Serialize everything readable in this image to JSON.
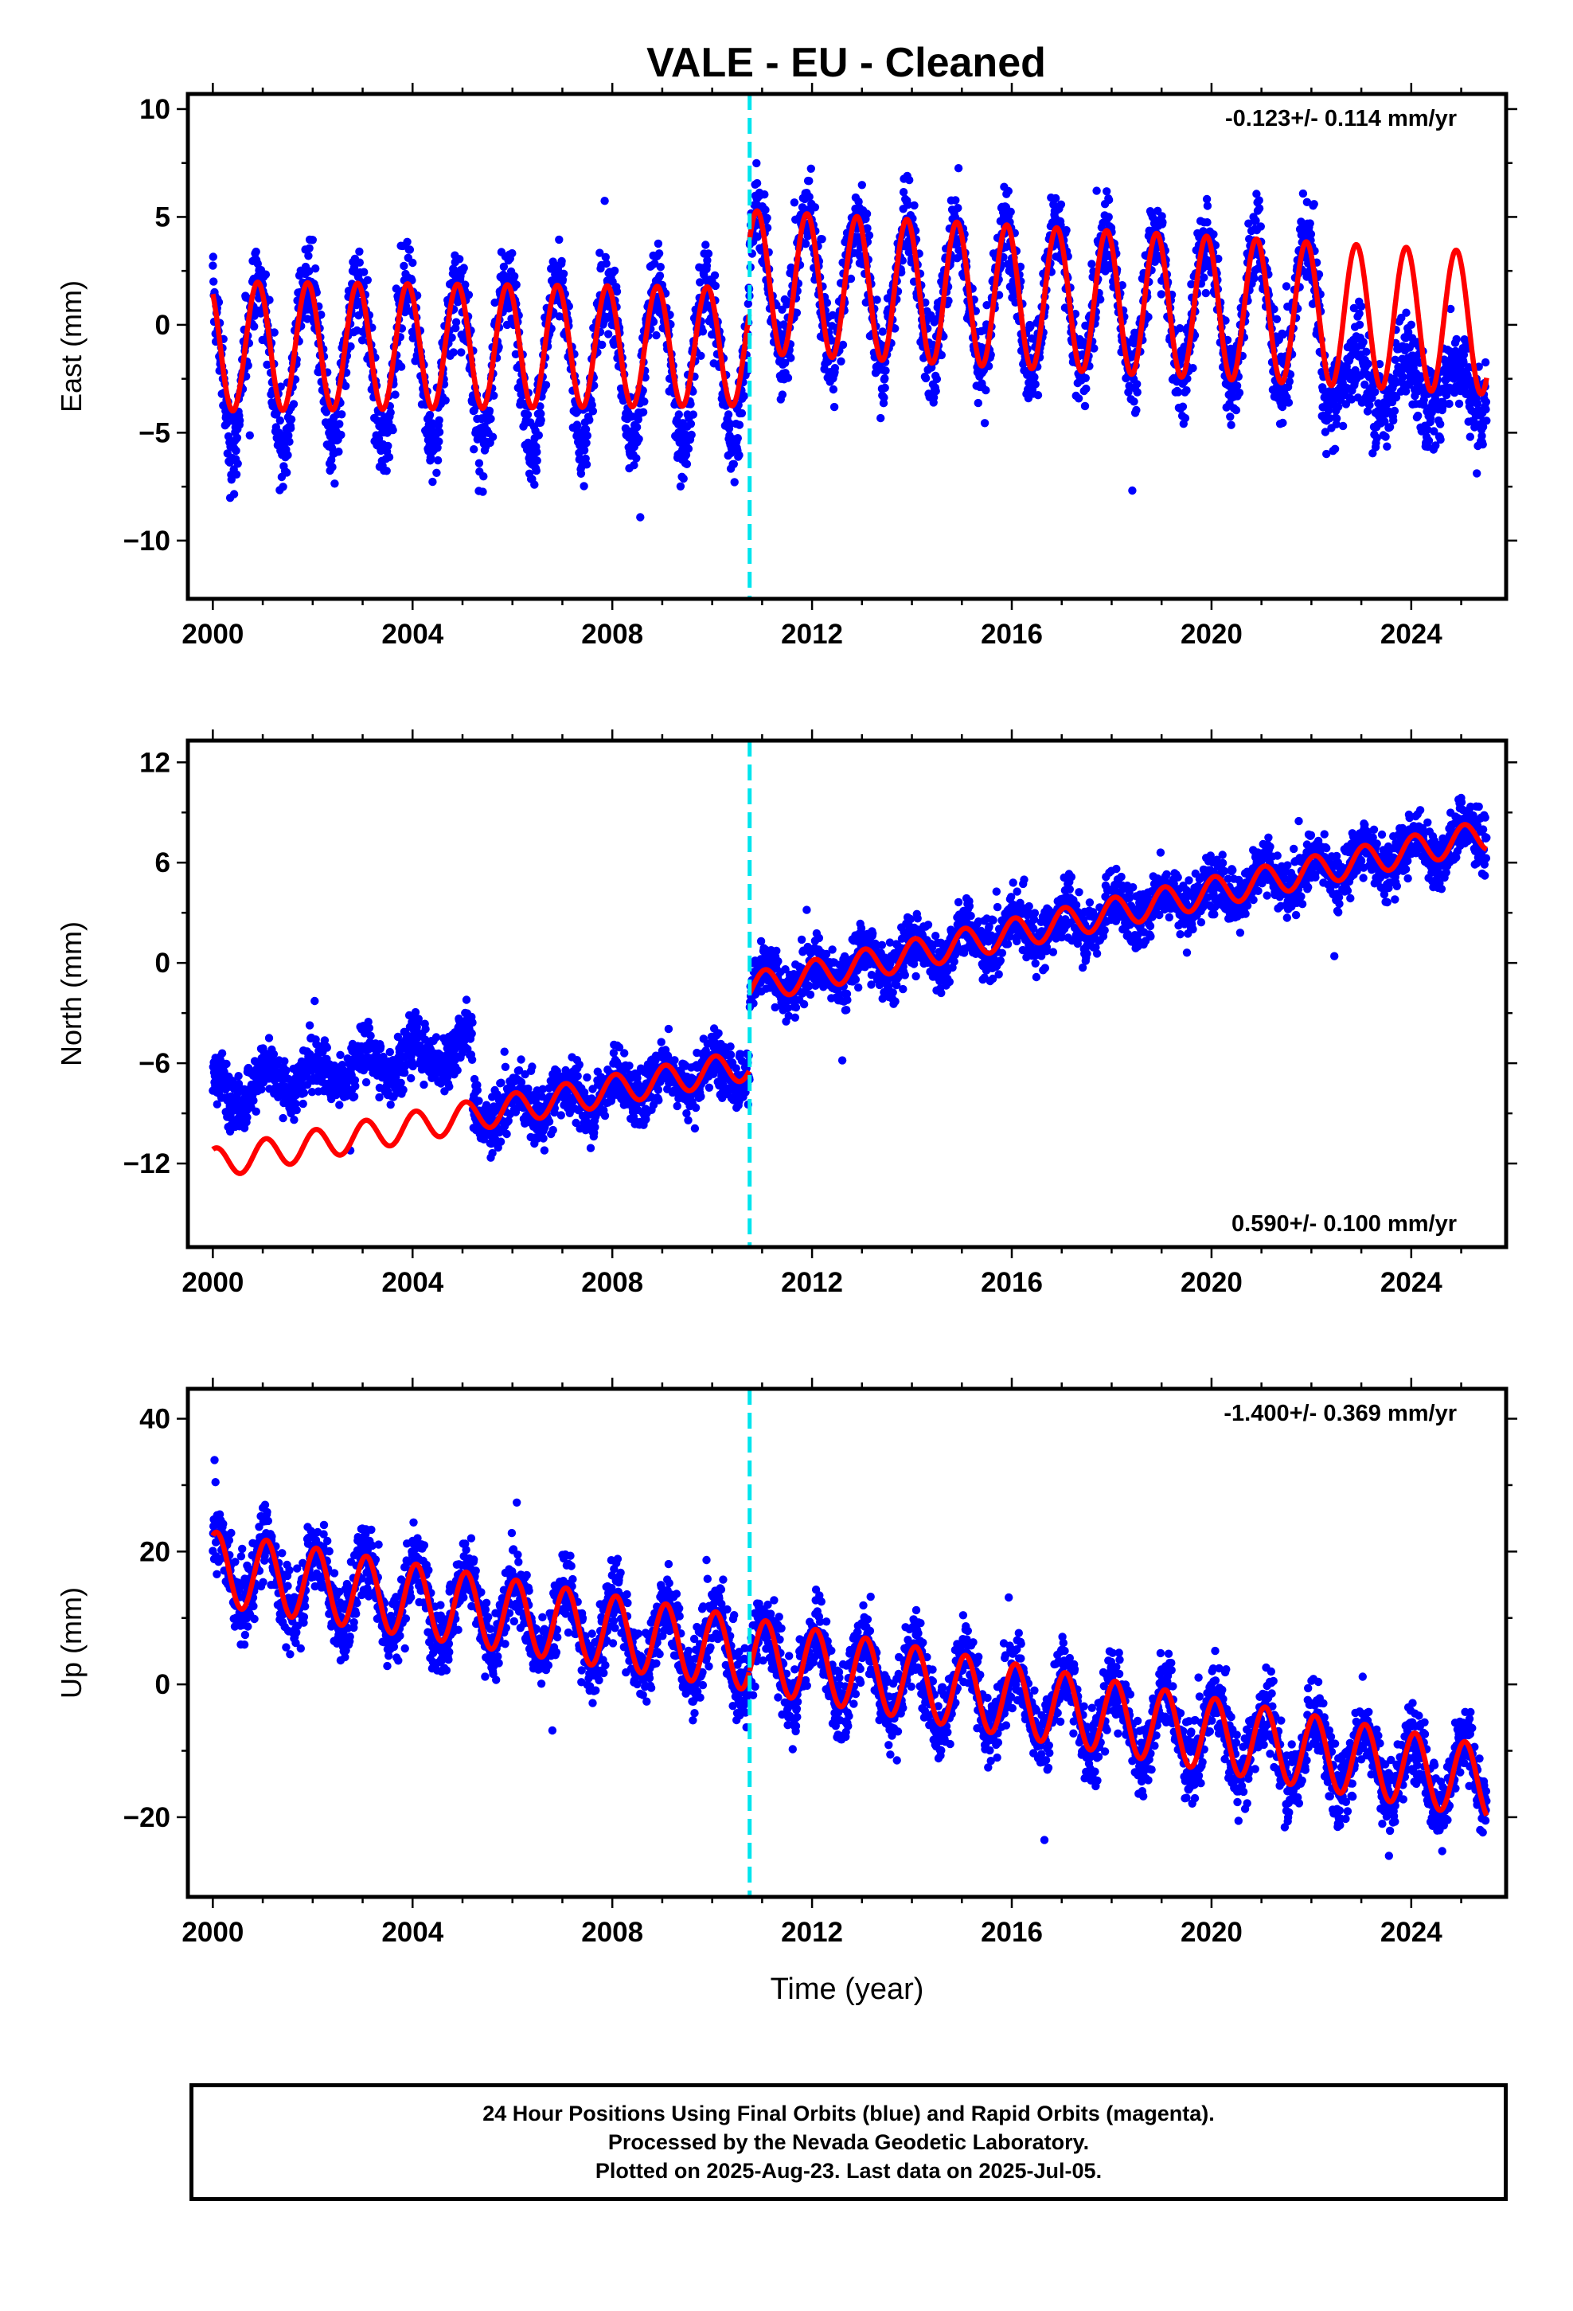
{
  "title": "VALE  - EU - Cleaned",
  "footer": {
    "line1": "24 Hour Positions Using Final Orbits (blue) and Rapid Orbits (magenta).",
    "line2": "Processed by the Nevada Geodetic Laboratory.",
    "line3": "Plotted on 2025-Aug-23. Last data on 2025-Jul-05."
  },
  "colors": {
    "final_orbits": "#0000ff",
    "model_fit": "#ff0000",
    "equipment_change": "#00e5ee",
    "frame": "#000000"
  },
  "chart_data": [
    {
      "type": "scatter",
      "ylabel": "East (mm)",
      "xlabel": "",
      "xlim": [
        1999.5,
        2025.9
      ],
      "ylim": [
        -12.7,
        10.7
      ],
      "xticks": [
        2000,
        2004,
        2008,
        2012,
        2016,
        2020,
        2024
      ],
      "yticks": [
        10,
        5,
        0,
        -5,
        -10
      ],
      "rate_text": "-0.123+/- 0.114 mm/yr",
      "rate_position": "top-right",
      "discontinuity": 2010.75,
      "data_start": 2000.0,
      "data_end": 2025.51,
      "model": {
        "pre": {
          "offset": -1.0,
          "trend": 0.0,
          "annual_amp": 3.0,
          "annual_amp_change": 0.6,
          "phase": 2.2
        },
        "post": {
          "offset": 2.0,
          "trend": -0.13,
          "annual_amp": 3.3,
          "annual_amp_change": 0.0,
          "phase": 2.2
        },
        "fit_start": 2000.0,
        "fit_end": 2025.51
      },
      "series": [
        {
          "name": "final orbits (blue)",
          "noise": 1.4,
          "extra": "east"
        },
        {
          "name": "model (red)"
        }
      ]
    },
    {
      "type": "scatter",
      "ylabel": "North (mm)",
      "xlabel": "",
      "xlim": [
        1999.5,
        2025.9
      ],
      "ylim": [
        -17,
        13.3
      ],
      "xticks": [
        2000,
        2004,
        2008,
        2012,
        2016,
        2020,
        2024
      ],
      "yticks": [
        12,
        6,
        0,
        -6,
        -12
      ],
      "rate_text": "0.590+/- 0.100 mm/yr",
      "rate_position": "bottom-right",
      "discontinuity": 2010.75,
      "data_start": 2000.0,
      "data_end": 2025.51,
      "model": {
        "pre": {
          "offset": -12.0,
          "trend": 0.55,
          "annual_amp": 0.9,
          "annual_amp_change": 0.0,
          "phase": 1.2
        },
        "post": {
          "offset": -1.5,
          "trend": 0.62,
          "annual_amp": 0.9,
          "annual_amp_change": 0.0,
          "phase": 1.2
        },
        "fit_start": 2000.0,
        "fit_end": 2025.51
      },
      "series": [
        {
          "name": "final orbits (blue)",
          "noise": 1.2,
          "extra": "north"
        },
        {
          "name": "model (red)"
        }
      ]
    },
    {
      "type": "scatter",
      "ylabel": "Up (mm)",
      "xlabel": "Time (year)",
      "xlim": [
        1999.5,
        2025.9
      ],
      "ylim": [
        -32,
        44.5
      ],
      "xticks": [
        2000,
        2004,
        2008,
        2012,
        2016,
        2020,
        2024
      ],
      "yticks": [
        40,
        20,
        0,
        -20
      ],
      "rate_text": "-1.400+/- 0.369 mm/yr",
      "rate_position": "top-right",
      "discontinuity": 2010.75,
      "data_start": 2000.0,
      "data_end": 2025.51,
      "model": {
        "pre": {
          "offset": 17.5,
          "trend": -1.2,
          "annual_amp": 5.5,
          "annual_amp_change": 0.0,
          "phase": 1.1
        },
        "post": {
          "offset": 4.5,
          "trend": -1.3,
          "annual_amp": 5.5,
          "annual_amp_change": 0.0,
          "phase": 1.1
        },
        "fit_start": 2000.0,
        "fit_end": 2025.51
      },
      "series": [
        {
          "name": "final orbits (blue)",
          "noise": 4.0,
          "extra": "up"
        },
        {
          "name": "model (red)"
        }
      ]
    }
  ]
}
